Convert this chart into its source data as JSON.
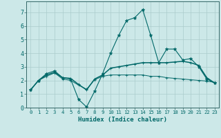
{
  "xlabel": "Humidex (Indice chaleur)",
  "bg_color": "#cce8e8",
  "grid_color": "#aacccc",
  "line_color": "#006868",
  "xlim": [
    -0.5,
    23.5
  ],
  "ylim": [
    0,
    7.8
  ],
  "yticks": [
    0,
    1,
    2,
    3,
    4,
    5,
    6,
    7
  ],
  "xticks": [
    0,
    1,
    2,
    3,
    4,
    5,
    6,
    7,
    8,
    9,
    10,
    11,
    12,
    13,
    14,
    15,
    16,
    17,
    18,
    19,
    20,
    21,
    22,
    23
  ],
  "line1_x": [
    0,
    1,
    2,
    3,
    4,
    5,
    6,
    7,
    8,
    9,
    10,
    11,
    12,
    13,
    14,
    15,
    16,
    17,
    18,
    19,
    20,
    21,
    22,
    23
  ],
  "line1_y": [
    1.3,
    2.0,
    2.5,
    2.7,
    2.2,
    2.1,
    0.6,
    0.05,
    1.2,
    2.5,
    4.0,
    5.3,
    6.4,
    6.6,
    7.2,
    5.3,
    3.3,
    4.3,
    4.3,
    3.5,
    3.6,
    3.0,
    2.1,
    1.8
  ],
  "line2_x": [
    0,
    1,
    2,
    3,
    4,
    5,
    6,
    7,
    8,
    9,
    10,
    11,
    12,
    13,
    14,
    15,
    16,
    17,
    18,
    19,
    20,
    21,
    22,
    23
  ],
  "line2_y": [
    1.3,
    2.0,
    2.4,
    2.6,
    2.2,
    2.15,
    1.7,
    1.3,
    2.1,
    2.4,
    2.9,
    3.0,
    3.1,
    3.2,
    3.3,
    3.3,
    3.3,
    3.3,
    3.35,
    3.4,
    3.3,
    3.1,
    2.2,
    1.8
  ],
  "line3_x": [
    0,
    1,
    2,
    3,
    4,
    5,
    6,
    7,
    8,
    9,
    10,
    11,
    12,
    13,
    14,
    15,
    16,
    17,
    18,
    19,
    20,
    21,
    22,
    23
  ],
  "line3_y": [
    1.3,
    2.0,
    2.3,
    2.55,
    2.1,
    2.0,
    1.65,
    1.35,
    2.05,
    2.3,
    2.4,
    2.4,
    2.4,
    2.4,
    2.4,
    2.3,
    2.3,
    2.2,
    2.15,
    2.1,
    2.05,
    2.0,
    1.95,
    1.85
  ]
}
